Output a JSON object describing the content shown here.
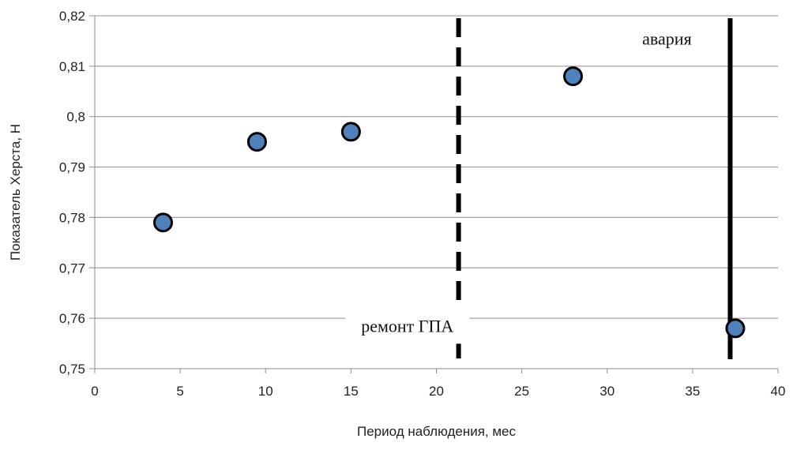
{
  "chart_data": {
    "type": "scatter",
    "xlabel": "Период наблюдения, мес",
    "ylabel": "Показатель Херста, Н",
    "xlim": [
      0,
      40
    ],
    "ylim": [
      0.75,
      0.82
    ],
    "x_ticks": [
      "0",
      "5",
      "10",
      "15",
      "20",
      "25",
      "30",
      "35",
      "40"
    ],
    "y_ticks": [
      "0,75",
      "0,76",
      "0,77",
      "0,78",
      "0,79",
      "0,8",
      "0,81",
      "0,82"
    ],
    "grid": "horizontal",
    "series": [
      {
        "color": "#4f81bd",
        "points": [
          {
            "x": 4,
            "y": 0.779
          },
          {
            "x": 9.5,
            "y": 0.795
          },
          {
            "x": 15,
            "y": 0.797
          },
          {
            "x": 28,
            "y": 0.808
          },
          {
            "x": 37.5,
            "y": 0.758
          }
        ]
      }
    ],
    "reference_lines": [
      {
        "x": 21.3,
        "style": "dashed",
        "label": "ремонт ГПА",
        "label_x": 18.3,
        "label_y": 0.7573
      },
      {
        "x": 37.2,
        "style": "solid",
        "label": "авария",
        "label_x": 33.5,
        "label_y": 0.8143
      }
    ]
  }
}
